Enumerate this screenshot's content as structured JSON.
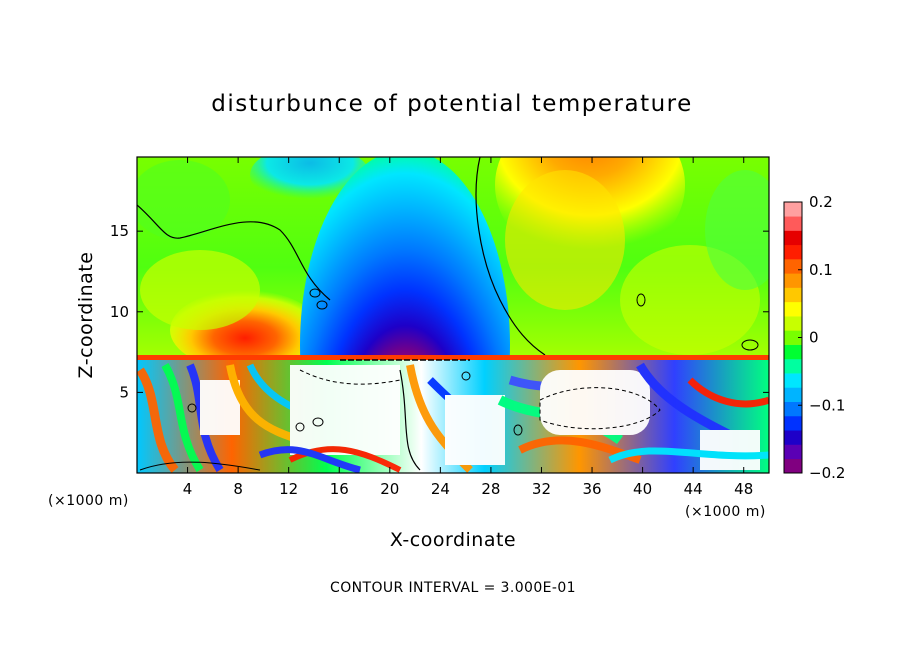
{
  "chart_data": {
    "type": "heatmap",
    "title": "disturbunce of potential temperature",
    "xlabel": "X-coordinate",
    "ylabel": "Z-coordinate",
    "x_unit_label": "(×1000 m)",
    "x_ticks": [
      4,
      8,
      12,
      16,
      20,
      24,
      28,
      32,
      36,
      40,
      44,
      48
    ],
    "y_ticks": [
      5,
      10,
      15
    ],
    "xlim": [
      0,
      50
    ],
    "ylim": [
      0,
      19.6
    ],
    "colorbar": {
      "ticks": [
        "0.2",
        "0.1",
        "0",
        "−0.1",
        "−0.2"
      ],
      "range": [
        -0.2,
        0.2
      ],
      "colors": [
        "#800080",
        "#5a00b4",
        "#1e00c8",
        "#0032ff",
        "#0078ff",
        "#00b4ff",
        "#00e6ff",
        "#00ffa0",
        "#00ff32",
        "#78ff00",
        "#c8ff00",
        "#ffff00",
        "#ffc800",
        "#ff9600",
        "#ff6400",
        "#ff1e00",
        "#e60000",
        "#ff5a5a",
        "#ffa0a0"
      ]
    },
    "contour_note": "CONTOUR INTERVAL = 3.000E-01"
  }
}
